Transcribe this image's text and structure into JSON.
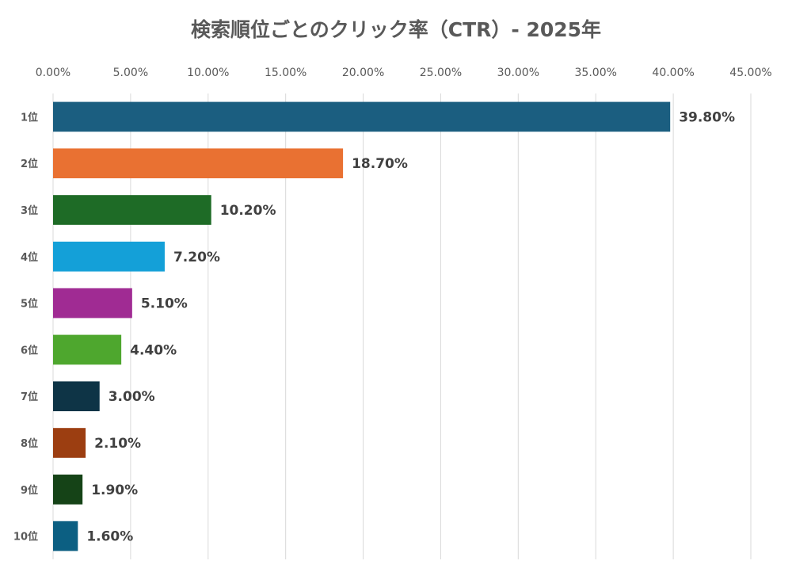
{
  "chart_data": {
    "type": "bar",
    "orientation": "horizontal",
    "title": "検索順位ごとのクリック率（CTR）- 2025年",
    "xlabel": "",
    "ylabel": "",
    "xlim": [
      0,
      45
    ],
    "x_ticks": [
      "0.00%",
      "5.00%",
      "10.00%",
      "15.00%",
      "20.00%",
      "25.00%",
      "30.00%",
      "35.00%",
      "40.00%",
      "45.00%"
    ],
    "tick_axis_position": "top",
    "grid": true,
    "legend": "none",
    "categories": [
      "1位",
      "2位",
      "3位",
      "4位",
      "5位",
      "6位",
      "7位",
      "8位",
      "9位",
      "10位"
    ],
    "values": [
      39.8,
      18.7,
      10.2,
      7.2,
      5.1,
      4.4,
      3.0,
      2.1,
      1.9,
      1.6
    ],
    "value_labels": [
      "39.80%",
      "18.70%",
      "10.20%",
      "7.20%",
      "5.10%",
      "4.40%",
      "3.00%",
      "2.10%",
      "1.90%",
      "1.60%"
    ],
    "colors": [
      "#1b5e80",
      "#e97132",
      "#1e6b26",
      "#14a0d8",
      "#a02b93",
      "#4ea72e",
      "#0e3446",
      "#9c3e11",
      "#154317",
      "#0c5f82"
    ]
  }
}
